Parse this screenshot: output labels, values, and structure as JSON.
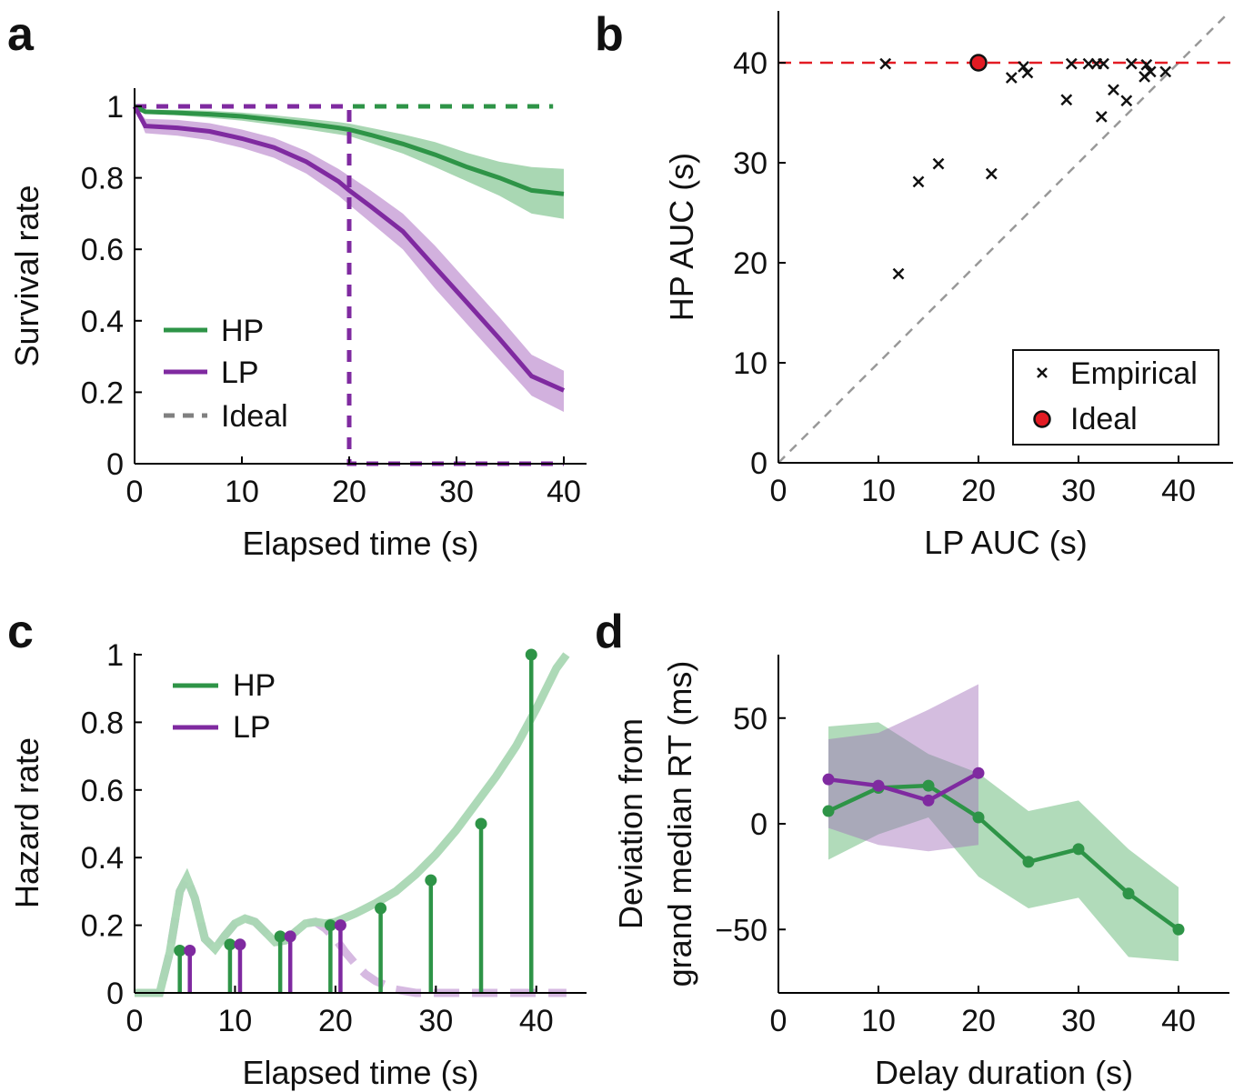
{
  "colors": {
    "hp": "#2e9447",
    "lp": "#7f2aa0",
    "hp_band": "#a9d7b3",
    "lp_band": "#d2b1de",
    "ideal_gray": "#808080",
    "ideal_red": "#e31b23"
  },
  "chart_data": [
    {
      "panel": "a",
      "type": "line",
      "xlabel": "Elapsed time (s)",
      "ylabel": "Survival rate",
      "xlim": [
        0,
        40
      ],
      "ylim": [
        0,
        1
      ],
      "xticks": [
        0,
        10,
        20,
        30,
        40
      ],
      "yticks": [
        0,
        0.2,
        0.4,
        0.6,
        0.8,
        1
      ],
      "ytick_labels": [
        "0",
        "0.2",
        "0.4",
        "0.6",
        "0.8",
        "1"
      ],
      "legend": {
        "position": "bottom-left",
        "entries": [
          "HP",
          "LP",
          "Ideal"
        ]
      },
      "x": [
        0,
        1,
        4,
        7,
        10,
        13,
        16,
        19,
        20,
        22,
        25,
        28,
        31,
        34,
        37,
        40
      ],
      "series": [
        {
          "name": "HP",
          "values": [
            1.0,
            0.985,
            0.982,
            0.978,
            0.972,
            0.962,
            0.952,
            0.94,
            0.935,
            0.92,
            0.895,
            0.865,
            0.83,
            0.8,
            0.765,
            0.755
          ],
          "band_upper": [
            1.0,
            0.99,
            0.99,
            0.988,
            0.983,
            0.975,
            0.966,
            0.956,
            0.952,
            0.94,
            0.922,
            0.9,
            0.87,
            0.845,
            0.83,
            0.825
          ],
          "band_lower": [
            1.0,
            0.98,
            0.975,
            0.968,
            0.96,
            0.948,
            0.936,
            0.922,
            0.917,
            0.898,
            0.868,
            0.83,
            0.79,
            0.75,
            0.7,
            0.685
          ]
        },
        {
          "name": "LP",
          "values": [
            1.0,
            0.945,
            0.94,
            0.93,
            0.91,
            0.885,
            0.845,
            0.79,
            0.765,
            0.72,
            0.65,
            0.55,
            0.45,
            0.35,
            0.245,
            0.205
          ],
          "band_upper": [
            1.0,
            0.965,
            0.962,
            0.953,
            0.935,
            0.912,
            0.875,
            0.825,
            0.805,
            0.765,
            0.7,
            0.61,
            0.51,
            0.41,
            0.305,
            0.26
          ],
          "band_lower": [
            1.0,
            0.925,
            0.918,
            0.905,
            0.884,
            0.856,
            0.812,
            0.75,
            0.725,
            0.675,
            0.6,
            0.49,
            0.39,
            0.29,
            0.19,
            0.145
          ]
        }
      ],
      "ideal": {
        "HP": {
          "x": [
            0,
            39
          ],
          "y": [
            1,
            1
          ]
        },
        "LP": {
          "x": [
            0,
            20,
            20,
            40
          ],
          "y": [
            1,
            1,
            0,
            0
          ]
        }
      }
    },
    {
      "panel": "b",
      "type": "scatter",
      "xlabel": "LP AUC (s)",
      "ylabel": "HP AUC (s)",
      "xlim": [
        0,
        45
      ],
      "ylim": [
        0,
        45
      ],
      "xticks": [
        0,
        10,
        20,
        30,
        40
      ],
      "yticks": [
        0,
        10,
        20,
        30,
        40
      ],
      "legend": {
        "position": "bottom-right",
        "entries": [
          "Empirical",
          "Ideal"
        ]
      },
      "empirical": [
        [
          10.7,
          39.9
        ],
        [
          12.0,
          18.9
        ],
        [
          14.0,
          28.1
        ],
        [
          16.0,
          29.9
        ],
        [
          21.3,
          28.9
        ],
        [
          23.3,
          38.5
        ],
        [
          24.5,
          39.6
        ],
        [
          24.9,
          39.0
        ],
        [
          28.8,
          36.3
        ],
        [
          29.3,
          39.9
        ],
        [
          31.0,
          39.9
        ],
        [
          31.8,
          39.9
        ],
        [
          32.3,
          34.6
        ],
        [
          32.5,
          39.9
        ],
        [
          33.5,
          37.3
        ],
        [
          34.8,
          36.2
        ],
        [
          35.3,
          39.9
        ],
        [
          36.6,
          38.6
        ],
        [
          36.8,
          39.8
        ],
        [
          37.2,
          39.1
        ],
        [
          38.7,
          39.1
        ]
      ],
      "ideal_point": [
        20,
        40
      ],
      "ideal_line_y": 40,
      "diagonal": true
    },
    {
      "panel": "c",
      "type": "stem",
      "xlabel": "Elapsed time (s)",
      "ylabel": "Hazard rate",
      "xlim": [
        0,
        45
      ],
      "ylim": [
        0,
        1
      ],
      "xticks": [
        0,
        10,
        20,
        30,
        40
      ],
      "yticks": [
        0,
        0.2,
        0.4,
        0.6,
        0.8,
        1
      ],
      "ytick_labels": [
        "0",
        "0.2",
        "0.4",
        "0.6",
        "0.8",
        "1"
      ],
      "legend": {
        "position": "top-left",
        "entries": [
          "HP",
          "LP"
        ]
      },
      "series": [
        {
          "name": "HP",
          "x": [
            4.5,
            9.5,
            14.5,
            19.5,
            24.5,
            29.5,
            34.5,
            39.5
          ],
          "values": [
            0.125,
            0.143,
            0.167,
            0.2,
            0.25,
            0.333,
            0.5,
            1.0
          ]
        },
        {
          "name": "LP",
          "x": [
            5.5,
            10.5,
            15.5,
            20.5
          ],
          "values": [
            0.125,
            0.143,
            0.167,
            0.2
          ]
        }
      ],
      "smooth_curves": {
        "HP": {
          "x": [
            0,
            2.5,
            3.5,
            4.5,
            5.2,
            6,
            7,
            8,
            9,
            10,
            11,
            12,
            13,
            14,
            15,
            16,
            17,
            18,
            19,
            20,
            22,
            24,
            26,
            28,
            30,
            32,
            34,
            36,
            38,
            40,
            42,
            43
          ],
          "y": [
            0,
            0.0,
            0.12,
            0.3,
            0.34,
            0.28,
            0.16,
            0.13,
            0.17,
            0.205,
            0.22,
            0.21,
            0.18,
            0.15,
            0.155,
            0.18,
            0.205,
            0.21,
            0.205,
            0.21,
            0.235,
            0.265,
            0.3,
            0.35,
            0.41,
            0.48,
            0.56,
            0.64,
            0.73,
            0.84,
            0.96,
            1.0
          ]
        },
        "LP": {
          "x": [
            0,
            2.5,
            3.5,
            4.5,
            5.2,
            6,
            7,
            8,
            9,
            10,
            11,
            12,
            13,
            14,
            15,
            16,
            17,
            18,
            19,
            20,
            21,
            22,
            23,
            24,
            26,
            28,
            31,
            35,
            40,
            43
          ],
          "y": [
            0,
            0.0,
            0.12,
            0.3,
            0.34,
            0.28,
            0.16,
            0.13,
            0.17,
            0.205,
            0.22,
            0.21,
            0.18,
            0.15,
            0.155,
            0.18,
            0.205,
            0.21,
            0.19,
            0.16,
            0.12,
            0.085,
            0.055,
            0.035,
            0.01,
            0.0,
            0.0,
            0.0,
            0.0,
            0.0
          ]
        }
      }
    },
    {
      "panel": "d",
      "type": "line",
      "xlabel": "Delay duration (s)",
      "ylabel_line1": "Deviation from",
      "ylabel_line2": "grand median RT (ms)",
      "xlim": [
        0,
        45
      ],
      "ylim": [
        -80,
        80
      ],
      "xticks": [
        0,
        10,
        20,
        30,
        40
      ],
      "yticks": [
        -50,
        0,
        50
      ],
      "ytick_labels": [
        "−50",
        "0",
        "50"
      ],
      "series": [
        {
          "name": "HP",
          "x": [
            5,
            10,
            15,
            20,
            25,
            30,
            35,
            40
          ],
          "values": [
            6,
            17,
            18,
            3,
            -18,
            -12,
            -33,
            -50
          ],
          "band_upper": [
            46,
            48,
            33,
            24,
            6,
            11,
            -12,
            -30
          ],
          "band_lower": [
            -17,
            -5,
            3,
            -25,
            -40,
            -35,
            -63,
            -65
          ]
        },
        {
          "name": "LP",
          "x": [
            5,
            10,
            15,
            20
          ],
          "values": [
            21,
            18,
            11,
            24
          ],
          "band_upper": [
            40,
            43,
            54,
            66
          ],
          "band_lower": [
            -2,
            -10,
            -13,
            -10
          ]
        }
      ]
    }
  ]
}
